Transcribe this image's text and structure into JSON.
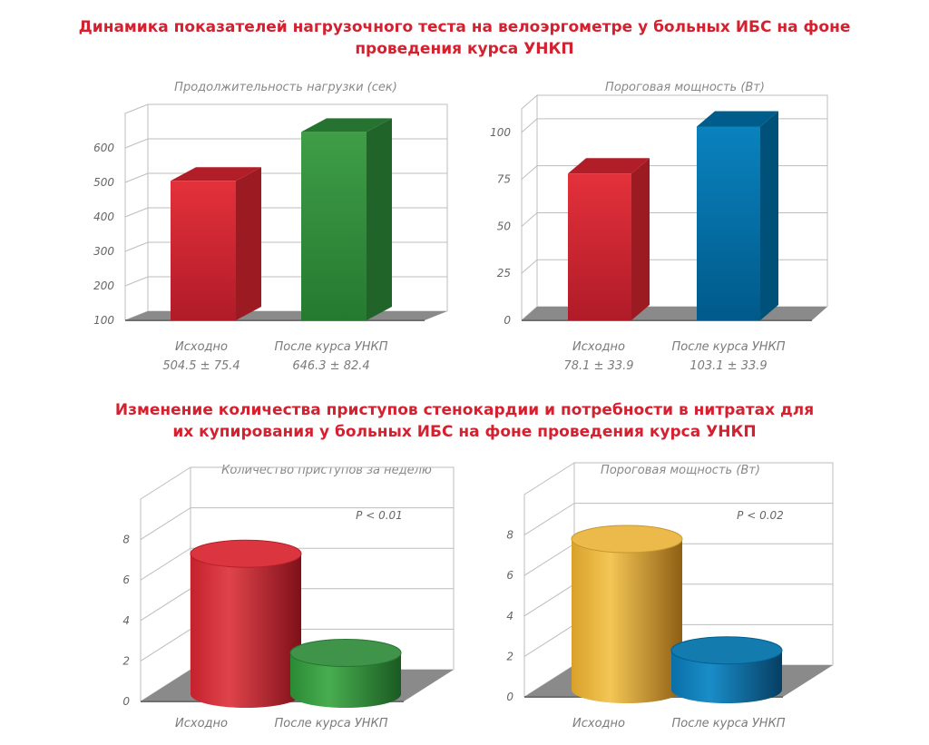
{
  "section1_title": [
    "Динамика показателей нагрузочного теста на велоэргометре у больных ИБС на фоне",
    "проведения курса УНКП"
  ],
  "section2_title": [
    "Изменение количества приступов стенокардии и потребности в нитратах для",
    "их купирования у больных ИБС на фоне проведения курса УНКП"
  ],
  "colors": {
    "title": "#d4202f",
    "red": "#d8252f",
    "green": "#2e8b3a",
    "blue": "#0070a8",
    "gold": "#e9b43a",
    "floor": "#8a8a8a"
  },
  "chart_data": [
    {
      "type": "bar",
      "title": "Продолжительность нагрузки (сек)",
      "categories": [
        "Исходно",
        "После курса УНКП"
      ],
      "category_sublabels": [
        "504.5 ± 75.4",
        "646.3 ± 82.4"
      ],
      "values": [
        504.5,
        646.3
      ],
      "yticks": [
        "100",
        "200",
        "300",
        "400",
        "500",
        "600"
      ],
      "ylim": [
        100,
        700
      ],
      "bar_colors": [
        "red",
        "green"
      ],
      "shape": "box3d"
    },
    {
      "type": "bar",
      "title": "Пороговая мощность (Вт)",
      "categories": [
        "Исходно",
        "После курса УНКП"
      ],
      "category_sublabels": [
        "78.1 ± 33.9",
        "103.1 ± 33.9"
      ],
      "values": [
        78.1,
        103.1
      ],
      "yticks": [
        "0",
        "25",
        "50",
        "75",
        "100"
      ],
      "ylim": [
        0,
        112.5
      ],
      "bar_colors": [
        "red",
        "blue"
      ],
      "shape": "box3d"
    },
    {
      "type": "bar",
      "title": "Количество приступов за неделю",
      "annotation": "P < 0.01",
      "categories": [
        "Исходно",
        "После курса УНКП"
      ],
      "values": [
        7.3,
        2.4
      ],
      "yticks": [
        "0",
        "2",
        "4",
        "6",
        "8"
      ],
      "ylim": [
        0,
        10
      ],
      "bar_colors": [
        "red",
        "green"
      ],
      "shape": "cylinder"
    },
    {
      "type": "bar",
      "title": "Пороговая мощность (Вт)",
      "annotation": "P < 0.02",
      "categories": [
        "Исходно",
        "После курса УНКП"
      ],
      "values": [
        7.8,
        2.3
      ],
      "yticks": [
        "0",
        "2",
        "4",
        "6",
        "8"
      ],
      "ylim": [
        0,
        10
      ],
      "bar_colors": [
        "gold",
        "blue"
      ],
      "shape": "cylinder"
    }
  ]
}
